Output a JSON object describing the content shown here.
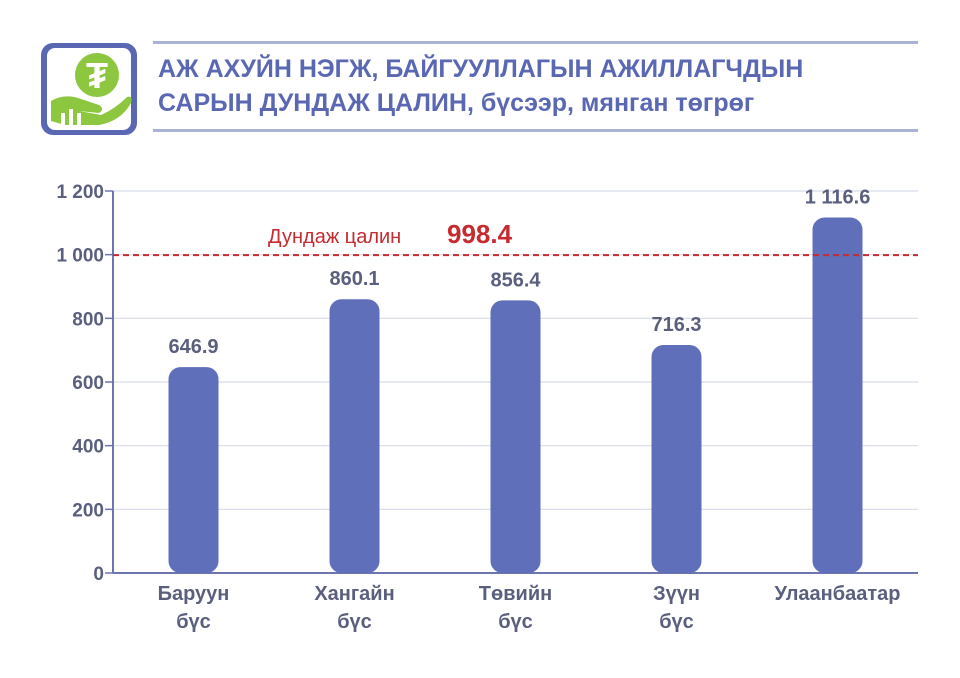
{
  "header": {
    "title_line1": "АЖ АХУЙН НЭГЖ, БАЙГУУЛЛАГЫН АЖИЛЛАГЧДЫН",
    "title_line2": "САРЫН ДУНДАЖ ЦАЛИН, бүсээр, мянган төгрөг"
  },
  "logo": {
    "icon": "salary-hand-icon",
    "bg": "#5a68b4",
    "accent": "#8dc63f"
  },
  "colors": {
    "bar": "#5f6fba",
    "average_line": "#c52b2f",
    "text": "#5a5f7e",
    "grid": "#d8dbea",
    "axis": "#6c75b0"
  },
  "chart_data": {
    "type": "bar",
    "title": "АЖ АХУЙН НЭГЖ, БАЙГУУЛЛАГЫН АЖИЛЛАГЧДЫН САРЫН ДУНДАЖ ЦАЛИН, бүсээр, мянган төгрөг",
    "categories": [
      [
        "Баруун",
        "бүс"
      ],
      [
        "Хангайн",
        "бүс"
      ],
      [
        "Төвийн",
        "бүс"
      ],
      [
        "Зүүн",
        "бүс"
      ],
      [
        "Улаанбаатар"
      ]
    ],
    "values": [
      646.9,
      860.1,
      856.4,
      716.3,
      1116.6
    ],
    "value_labels": [
      "646.9",
      "860.1",
      "856.4",
      "716.3",
      "1 116.6"
    ],
    "ylim": [
      0,
      1200
    ],
    "yticks": [
      0,
      200,
      400,
      600,
      800,
      1000,
      1200
    ],
    "ytick_labels": [
      "0",
      "200",
      "400",
      "600",
      "800",
      "1 000",
      "1 200"
    ],
    "grid": true,
    "average": {
      "label": "Дундаж цалин",
      "value": 998.4,
      "value_label": "998.4"
    }
  }
}
